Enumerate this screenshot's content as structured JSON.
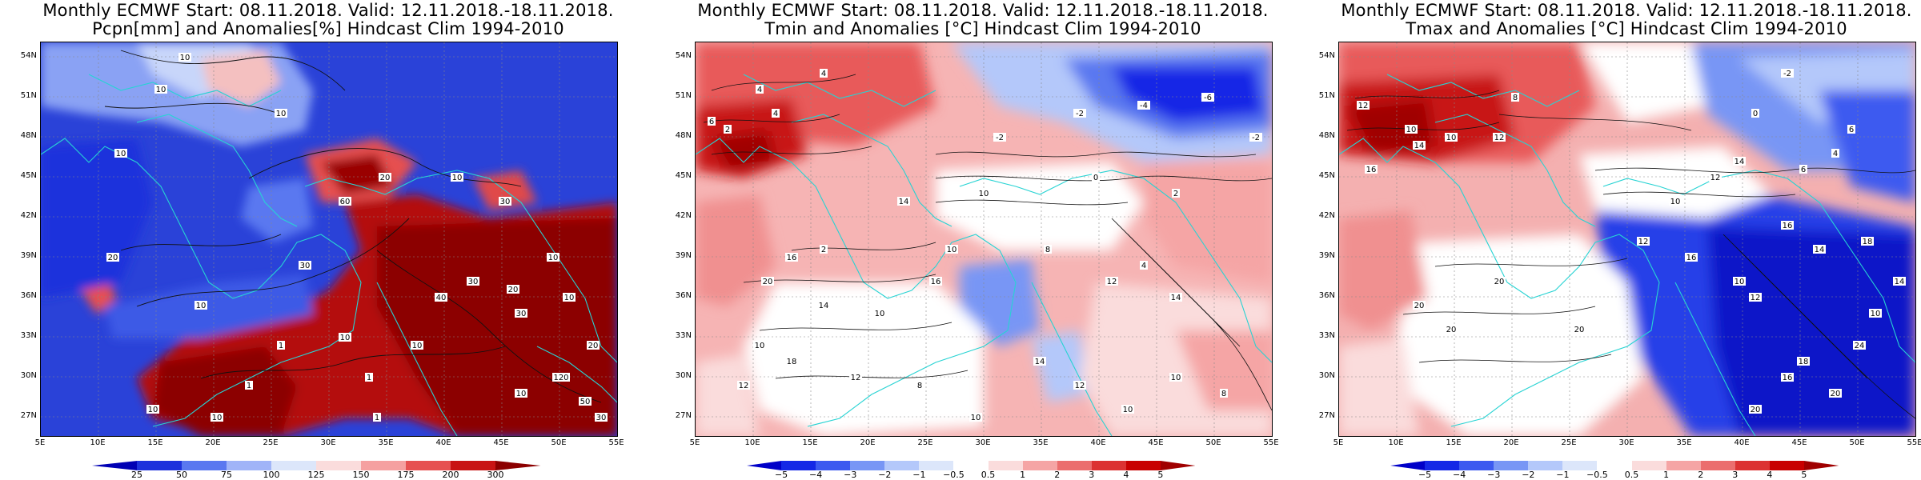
{
  "panels": [
    {
      "id": "precip",
      "title_line1": "Monthly ECMWF Start: 08.11.2018. Valid: 12.11.2018.-18.11.2018.",
      "title_line2": "Pcpn[mm] and Anomalies[%] Hindcast Clim 1994-2010",
      "colorbar_labels": [
        "25",
        "50",
        "75",
        "100",
        "125",
        "150",
        "175",
        "200",
        "300"
      ],
      "colorbar_colors": [
        "#0000b4",
        "#1e32dc",
        "#5a78f0",
        "#a0b4f8",
        "#dce6fa",
        "#fadcdc",
        "#f5a0a0",
        "#e65050",
        "#c81414",
        "#8c0000"
      ],
      "contour_labels": [
        "10",
        "10",
        "10",
        "10",
        "20",
        "10",
        "30",
        "60",
        "20",
        "10",
        "30",
        "30",
        "10",
        "10",
        "1",
        "1",
        "10",
        "1",
        "10",
        "40",
        "30",
        "20",
        "10",
        "10",
        "20",
        "120",
        "50",
        "30",
        "10",
        "1"
      ]
    },
    {
      "id": "tmin",
      "title_line1": "Monthly ECMWF Start: 08.11.2018. Valid: 12.11.2018.-18.11.2018.",
      "title_line2": "Tmin and Anomalies [°C] Hindcast Clim 1994-2010",
      "colorbar_labels": [
        "−5",
        "−4",
        "−3",
        "−2",
        "−1",
        "−0.5",
        "0.5",
        "1",
        "2",
        "3",
        "4",
        "5"
      ],
      "colorbar_colors": [
        "#0000c8",
        "#1428e6",
        "#3c5af0",
        "#7896f5",
        "#b4c8fa",
        "#dce6fa",
        "#ffffff",
        "#fadcdc",
        "#f5a5a5",
        "#eb6e6e",
        "#dc3232",
        "#c80000",
        "#a00000"
      ],
      "contour_labels": [
        "4",
        "2",
        "-2",
        "4",
        "4",
        "6",
        "-2",
        "-4",
        "-6",
        "-2",
        "2",
        "0",
        "10",
        "14",
        "10",
        "2",
        "8",
        "12",
        "4",
        "14",
        "16",
        "14",
        "10",
        "10",
        "16",
        "20",
        "12",
        "18",
        "12",
        "8",
        "10",
        "14",
        "12",
        "10",
        "10",
        "8"
      ]
    },
    {
      "id": "tmax",
      "title_line1": "Monthly ECMWF Start: 08.11.2018. Valid: 12.11.2018.-18.11.2018.",
      "title_line2": "Tmax and Anomalies [°C] Hindcast Clim 1994-2010",
      "colorbar_labels": [
        "−5",
        "−4",
        "−3",
        "−2",
        "−1",
        "−0.5",
        "0.5",
        "1",
        "2",
        "3",
        "4",
        "5"
      ],
      "colorbar_colors": [
        "#0000c8",
        "#1428e6",
        "#3c5af0",
        "#7896f5",
        "#b4c8fa",
        "#dce6fa",
        "#ffffff",
        "#fadcdc",
        "#f5a5a5",
        "#eb6e6e",
        "#dc3232",
        "#c80000",
        "#a00000"
      ],
      "contour_labels": [
        "-2",
        "0",
        "12",
        "10",
        "8",
        "10",
        "14",
        "12",
        "16",
        "14",
        "6",
        "4",
        "6",
        "12",
        "10",
        "16",
        "14",
        "18",
        "12",
        "16",
        "10",
        "12",
        "20",
        "20",
        "20",
        "24",
        "18",
        "20",
        "16",
        "20",
        "10",
        "14",
        "20"
      ]
    }
  ],
  "lat_labels": [
    "54N",
    "51N",
    "48N",
    "45N",
    "42N",
    "39N",
    "36N",
    "33N",
    "30N",
    "27N"
  ],
  "lon_labels": [
    "5E",
    "10E",
    "15E",
    "20E",
    "25E",
    "30E",
    "35E",
    "40E",
    "45E",
    "50E",
    "55E"
  ]
}
